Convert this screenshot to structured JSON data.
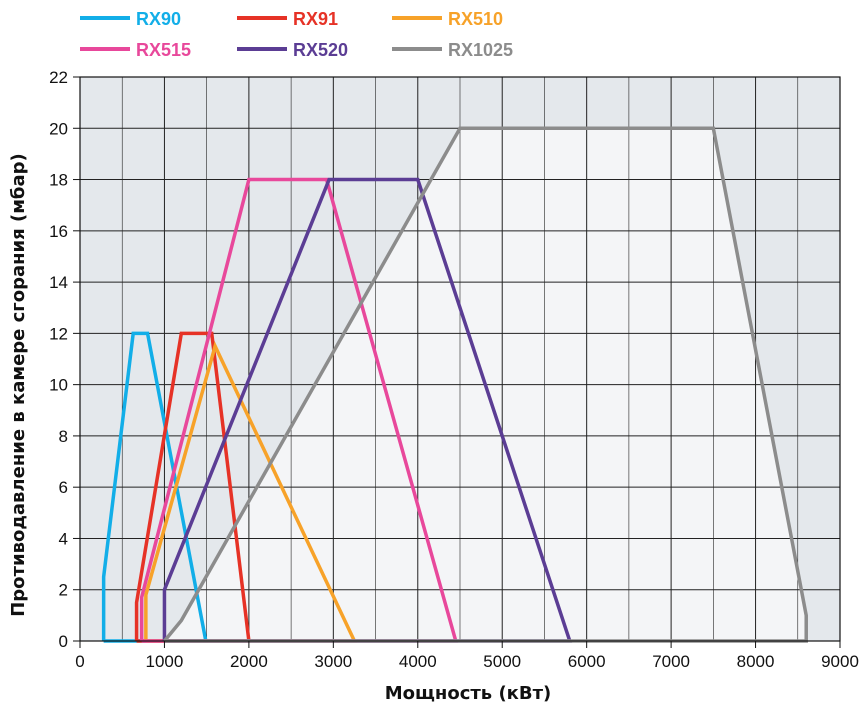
{
  "chart_data": {
    "type": "area",
    "title": "",
    "xlabel": "Мощность (кВт)",
    "ylabel": "Противодавление в камере сгорания (мбар)",
    "xlim": [
      0,
      9000
    ],
    "ylim": [
      0,
      22
    ],
    "x_ticks": [
      0,
      1000,
      2000,
      3000,
      4000,
      5000,
      6000,
      7000,
      8000,
      9000
    ],
    "y_ticks": [
      0,
      2,
      4,
      6,
      8,
      10,
      12,
      14,
      16,
      18,
      20,
      22
    ],
    "x_tick_labels": [
      "0",
      "1000",
      "2000",
      "3000",
      "4000",
      "5000",
      "6000",
      "7000",
      "8000",
      "9000"
    ],
    "y_tick_labels": [
      "0",
      "2",
      "4",
      "6",
      "8",
      "10",
      "12",
      "14",
      "16",
      "18",
      "20",
      "22"
    ],
    "grid": true,
    "legend_position": "top-left",
    "colors": {
      "background": "#e4e8ec",
      "envelope_fill": "#f4f5f7",
      "grid": "#222222"
    },
    "series": [
      {
        "name": "RX90",
        "color": "#12aee8",
        "x": [
          280,
          280,
          630,
          800,
          1490,
          280
        ],
        "y": [
          0,
          2.5,
          12,
          12,
          0,
          0
        ]
      },
      {
        "name": "RX91",
        "color": "#e63226",
        "x": [
          670,
          670,
          1200,
          1560,
          2000,
          670
        ],
        "y": [
          0,
          1.5,
          12,
          12,
          0,
          0
        ]
      },
      {
        "name": "RX510",
        "color": "#f7a229",
        "x": [
          780,
          780,
          1600,
          3250,
          780
        ],
        "y": [
          0,
          1.8,
          11.5,
          0,
          0
        ]
      },
      {
        "name": "RX515",
        "color": "#e8489b",
        "x": [
          730,
          730,
          2000,
          2920,
          4450,
          730
        ],
        "y": [
          0,
          1.7,
          18,
          18,
          0,
          0
        ]
      },
      {
        "name": "RX520",
        "color": "#5b3d94",
        "x": [
          1000,
          1000,
          2950,
          4000,
          5800,
          1000
        ],
        "y": [
          0,
          2,
          18,
          18,
          0,
          0
        ]
      },
      {
        "name": "RX1025",
        "color": "#8c8c8c",
        "x": [
          1000,
          1200,
          4500,
          7500,
          8600,
          8600,
          1000
        ],
        "y": [
          0,
          0.8,
          20,
          20,
          1,
          0,
          0
        ]
      }
    ]
  }
}
